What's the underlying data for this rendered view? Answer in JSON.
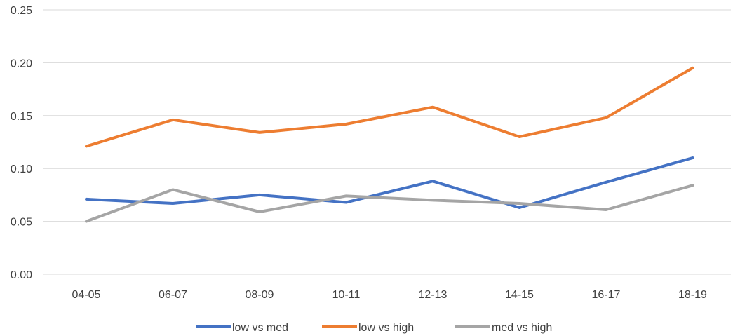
{
  "chart_data": {
    "type": "line",
    "title": "",
    "xlabel": "",
    "ylabel": "",
    "categories": [
      "04-05",
      "06-07",
      "08-09",
      "10-11",
      "12-13",
      "14-15",
      "16-17",
      "18-19"
    ],
    "ylim": [
      0,
      0.25
    ],
    "yticks": [
      0.0,
      0.05,
      0.1,
      0.15,
      0.2,
      0.25
    ],
    "ytick_labels": [
      "0.00",
      "0.05",
      "0.10",
      "0.15",
      "0.20",
      "0.25"
    ],
    "grid": true,
    "legend_position": "bottom",
    "series": [
      {
        "name": "low vs med",
        "color": "#4472C4",
        "values": [
          0.071,
          0.067,
          0.075,
          0.068,
          0.088,
          0.063,
          0.087,
          0.11
        ]
      },
      {
        "name": "low vs high",
        "color": "#ED7D31",
        "values": [
          0.121,
          0.146,
          0.134,
          0.142,
          0.158,
          0.13,
          0.148,
          0.195
        ]
      },
      {
        "name": "med vs high",
        "color": "#A5A5A5",
        "values": [
          0.05,
          0.08,
          0.059,
          0.074,
          0.07,
          0.067,
          0.061,
          0.084
        ]
      }
    ]
  }
}
